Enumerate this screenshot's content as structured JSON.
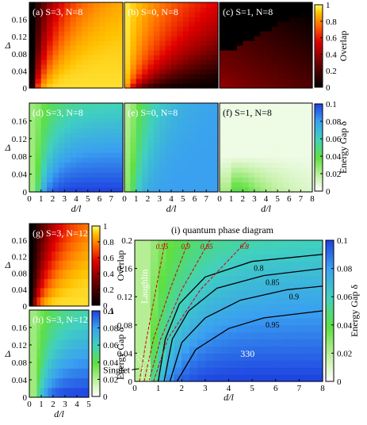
{
  "chart_data": {
    "type": "heatmap",
    "colorbars": {
      "overlap": {
        "title": "Overlap",
        "ticks": [
          "1",
          "0.8",
          "0.6",
          "0.4",
          "0.2",
          "0"
        ]
      },
      "gap": {
        "title": "Energy Gap δ",
        "ticks": [
          "0.1",
          "0.08",
          "0.06",
          "0.04",
          "0.02",
          "0"
        ]
      }
    },
    "y_ticks_top": [
      "0.16",
      "0.12",
      "0.08",
      "0.04",
      "0"
    ],
    "y_ticks_small": [
      "0.16",
      "0.12",
      "0.08",
      "0.04",
      "0"
    ],
    "y_ticks_diagram": [
      "0.2",
      "0.16",
      "0.12",
      "0.08",
      "0.04",
      "0"
    ],
    "x_ticks_8": [
      "0",
      "1",
      "2",
      "3",
      "4",
      "5",
      "6",
      "7",
      "8"
    ],
    "x_ticks_7": [
      "0",
      "1",
      "2",
      "3",
      "4",
      "5",
      "6",
      "7"
    ],
    "x_ticks_5": [
      "0",
      "1",
      "2",
      "3",
      "4",
      "5"
    ],
    "xlabel": "d/l",
    "ylabel": "Δ",
    "panels": [
      {
        "label": "(a) S=3, N=8",
        "quantity": "overlap",
        "ny": 18,
        "kind": "overlap_330",
        "xlim": [
          0,
          8
        ],
        "ylim": [
          0,
          0.2
        ]
      },
      {
        "label": "(b) S=0, N=8",
        "quantity": "overlap",
        "ny": 18,
        "kind": "overlap_laughlin",
        "xlim": [
          0,
          8
        ],
        "ylim": [
          0,
          0.2
        ]
      },
      {
        "label": "(c) S=1, N=8",
        "quantity": "overlap",
        "ny": 18,
        "kind": "overlap_s1",
        "xlim": [
          0,
          8
        ],
        "ylim": [
          0,
          0.2
        ]
      },
      {
        "label": "(d) S=3, N=8",
        "quantity": "gap",
        "ny": 18,
        "kind": "gap_330",
        "xlim": [
          0,
          8
        ],
        "ylim": [
          0,
          0.2
        ]
      },
      {
        "label": "(e) S=0, N=8",
        "quantity": "gap",
        "ny": 18,
        "kind": "gap_laughlin",
        "xlim": [
          0,
          8
        ],
        "ylim": [
          0,
          0.2
        ]
      },
      {
        "label": "(f) S=1, N=8",
        "quantity": "gap",
        "ny": 18,
        "kind": "gap_s1",
        "xlim": [
          0,
          8
        ],
        "ylim": [
          0,
          0.2
        ]
      },
      {
        "label": "(g) S=3, N=12",
        "quantity": "overlap",
        "ny": 9,
        "kind": "overlap_330",
        "xlim": [
          0,
          5
        ],
        "ylim": [
          0,
          0.2
        ]
      },
      {
        "label": "(h) S=3, N=12",
        "quantity": "gap",
        "ny": 9,
        "kind": "gap_330",
        "xlim": [
          0,
          5
        ],
        "ylim": [
          0,
          0.2
        ]
      }
    ],
    "phase_diagram": {
      "title": "(i) quantum phase diagram",
      "xlim": [
        0,
        8
      ],
      "ylim": [
        0,
        0.2
      ],
      "regions": [
        "Laughlin",
        "330",
        "Singlet"
      ],
      "contours_330": [
        {
          "label": "0.8",
          "points": [
            [
              1.0,
              0.0
            ],
            [
              1.3,
              0.06
            ],
            [
              1.9,
              0.11
            ],
            [
              3.0,
              0.148
            ],
            [
              5.0,
              0.17
            ],
            [
              8.0,
              0.18
            ]
          ]
        },
        {
          "label": "0.85",
          "points": [
            [
              1.25,
              0.0
            ],
            [
              1.6,
              0.06
            ],
            [
              2.3,
              0.1
            ],
            [
              3.5,
              0.132
            ],
            [
              5.5,
              0.15
            ],
            [
              8.0,
              0.16
            ]
          ]
        },
        {
          "label": "0.9",
          "points": [
            [
              1.5,
              0.0
            ],
            [
              2.0,
              0.055
            ],
            [
              3.0,
              0.09
            ],
            [
              4.5,
              0.115
            ],
            [
              6.5,
              0.13
            ],
            [
              8.0,
              0.135
            ]
          ]
        },
        {
          "label": "0.95",
          "points": [
            [
              1.8,
              0.0
            ],
            [
              2.6,
              0.045
            ],
            [
              4.0,
              0.075
            ],
            [
              5.5,
              0.09
            ],
            [
              8.0,
              0.1
            ]
          ]
        }
      ],
      "contours_laughlin": [
        {
          "label": "0.95",
          "points": [
            [
              0.2,
              0.0
            ],
            [
              0.5,
              0.06
            ],
            [
              0.9,
              0.13
            ],
            [
              1.3,
              0.2
            ]
          ]
        },
        {
          "label": "0.9",
          "points": [
            [
              0.4,
              0.0
            ],
            [
              0.8,
              0.06
            ],
            [
              1.5,
              0.13
            ],
            [
              2.3,
              0.2
            ]
          ]
        },
        {
          "label": "0.85",
          "points": [
            [
              0.6,
              0.0
            ],
            [
              1.1,
              0.06
            ],
            [
              2.0,
              0.13
            ],
            [
              3.2,
              0.2
            ]
          ]
        },
        {
          "label": "0.8",
          "points": [
            [
              0.8,
              0.0
            ],
            [
              1.4,
              0.06
            ],
            [
              2.8,
              0.13
            ],
            [
              4.8,
              0.2
            ]
          ]
        }
      ],
      "singlet_contours": [
        {
          "points": [
            [
              0.3,
              0.0
            ],
            [
              0.35,
              0.02
            ],
            [
              0.1,
              0.035
            ]
          ]
        },
        {
          "points": [
            [
              0.6,
              0.0
            ],
            [
              0.65,
              0.025
            ],
            [
              0.1,
              0.04
            ]
          ]
        }
      ]
    }
  }
}
